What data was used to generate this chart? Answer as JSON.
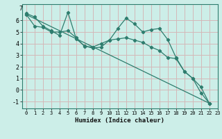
{
  "xlabel": "Humidex (Indice chaleur)",
  "bg_color": "#cceee8",
  "grid_color": "#d4b8b8",
  "line_color": "#2e7d6e",
  "xlim": [
    -0.5,
    23
  ],
  "ylim": [
    -1.6,
    7.4
  ],
  "xticks": [
    0,
    1,
    2,
    3,
    4,
    5,
    6,
    7,
    8,
    9,
    10,
    11,
    12,
    13,
    14,
    15,
    16,
    17,
    18,
    19,
    20,
    21,
    22,
    23
  ],
  "yticks": [
    -1,
    0,
    1,
    2,
    3,
    4,
    5,
    6
  ],
  "ytop_label": "7",
  "series": [
    {
      "x": [
        0,
        1,
        2,
        3,
        4,
        5,
        6,
        7,
        8,
        9,
        10,
        11,
        12,
        13,
        14,
        15,
        16,
        17,
        18,
        19,
        20,
        21,
        22
      ],
      "y": [
        6.6,
        6.3,
        5.5,
        5.1,
        4.7,
        6.7,
        4.4,
        3.8,
        3.6,
        3.7,
        4.3,
        5.3,
        6.2,
        5.7,
        5.0,
        5.2,
        5.3,
        4.35,
        2.8,
        1.6,
        1.0,
        -0.25,
        -1.15
      ]
    },
    {
      "x": [
        0,
        1,
        2,
        3,
        4,
        5,
        6,
        7,
        8,
        9,
        10,
        11,
        12,
        13,
        14,
        15,
        16,
        17,
        18,
        19,
        20,
        21,
        22
      ],
      "y": [
        6.5,
        5.5,
        5.4,
        5.0,
        5.0,
        5.1,
        4.5,
        3.75,
        3.7,
        4.0,
        4.3,
        4.4,
        4.5,
        4.3,
        4.1,
        3.7,
        3.4,
        2.8,
        2.7,
        1.6,
        1.0,
        0.25,
        -1.15
      ]
    },
    {
      "x": [
        0,
        22
      ],
      "y": [
        6.5,
        -1.15
      ]
    }
  ]
}
